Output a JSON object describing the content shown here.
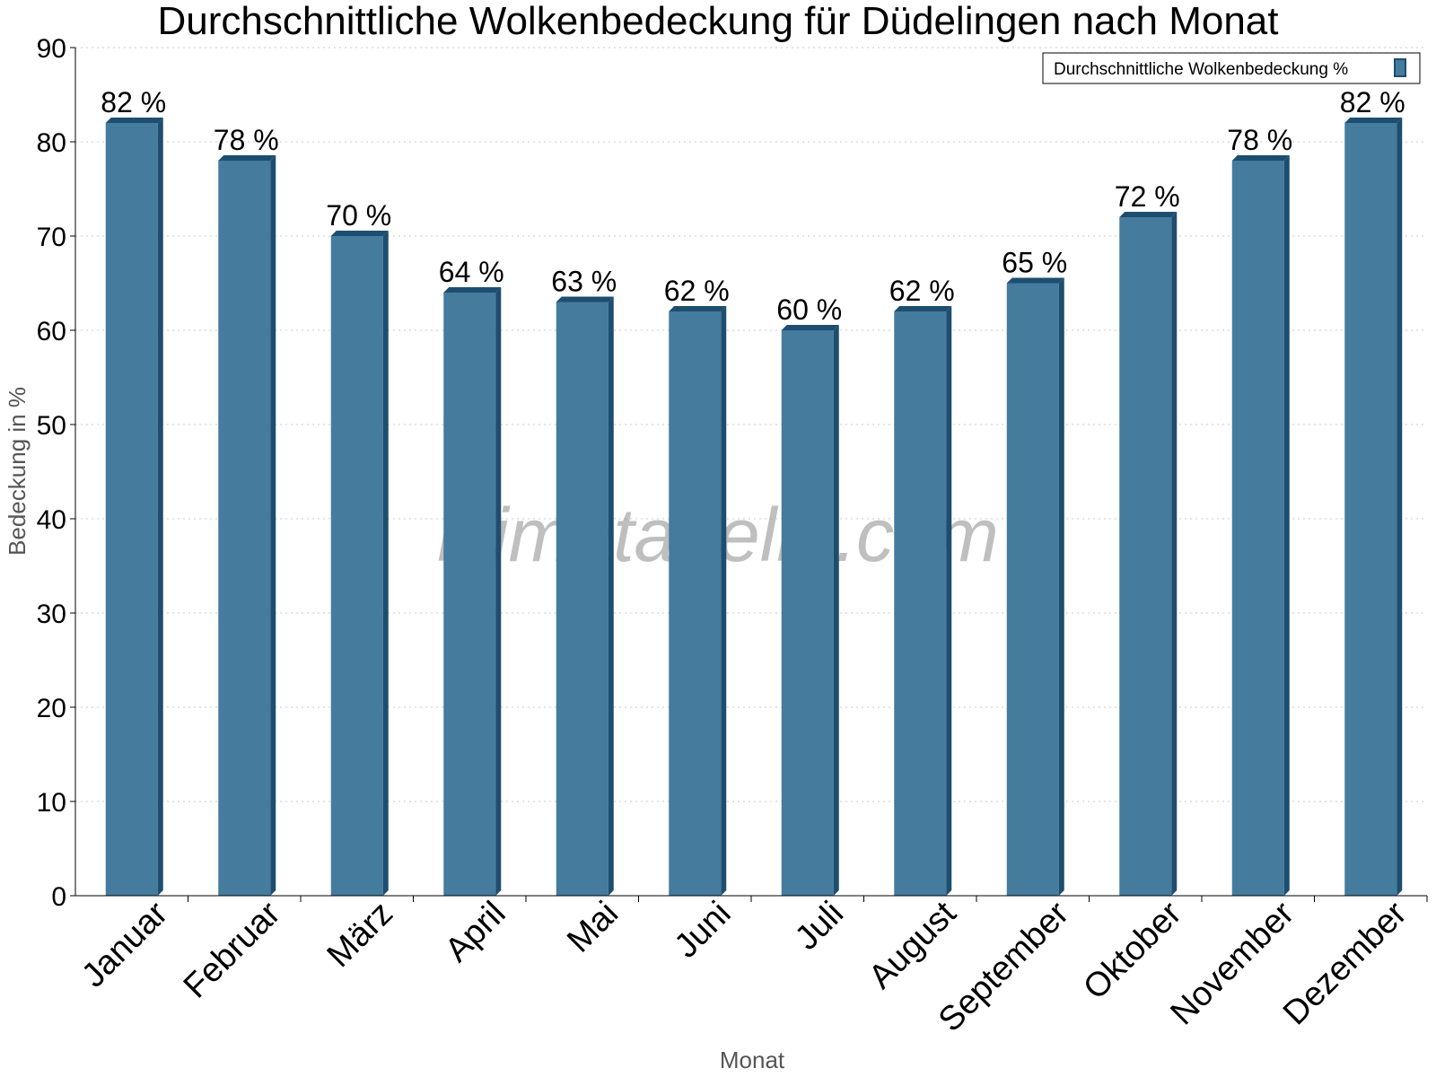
{
  "chart_data": {
    "type": "bar",
    "title": "Durchschnittliche Wolkenbedeckung für Düdelingen nach Monat",
    "xlabel": "Monat",
    "ylabel": "Bedeckung in %",
    "ylim": [
      0,
      90
    ],
    "yticks": [
      0,
      10,
      20,
      30,
      40,
      50,
      60,
      70,
      80,
      90
    ],
    "grid": true,
    "legend_position": "top-right",
    "categories": [
      "Januar",
      "Februar",
      "März",
      "April",
      "Mai",
      "Juni",
      "Juli",
      "August",
      "September",
      "Oktober",
      "November",
      "Dezember"
    ],
    "series": [
      {
        "name": "Durchschnittliche Wolkenbedeckung %",
        "values": [
          82,
          78,
          70,
          64,
          63,
          62,
          60,
          62,
          65,
          72,
          78,
          82
        ],
        "labels": [
          "82 %",
          "78 %",
          "70 %",
          "64 %",
          "63 %",
          "62 %",
          "60 %",
          "62 %",
          "65 %",
          "72 %",
          "78 %",
          "82 %"
        ],
        "color": "#457b9d",
        "side_color": "#1d4e6f",
        "top_color": "#1d4e6f"
      }
    ],
    "watermark": "klimatabelle.com"
  }
}
